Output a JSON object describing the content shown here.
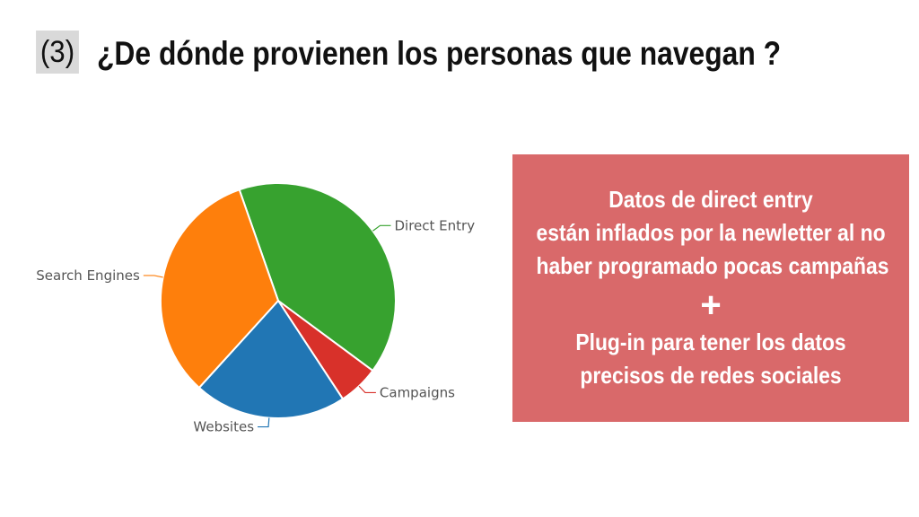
{
  "slide": {
    "number": "(3)",
    "title": "¿De dónde provienen los personas que navegan ?"
  },
  "note": {
    "line1": "Datos de direct entry",
    "line2": "están inflados por la newletter al no",
    "line3": "haber programado pocas campañas",
    "plus": "+",
    "line4": "Plug-in para tener los datos",
    "line5": "precisos de redes sociales",
    "background_color": "#d9696a"
  },
  "chart_data": {
    "type": "pie",
    "title": "",
    "slices": [
      {
        "label": "Direct Entry",
        "value": 40.5,
        "color": "#37a22f"
      },
      {
        "label": "Campaigns",
        "value": 5.6,
        "color": "#d8312a"
      },
      {
        "label": "Websites",
        "value": 21.0,
        "color": "#2176b4"
      },
      {
        "label": "Search Engines",
        "value": 32.9,
        "color": "#fe7f0c"
      }
    ],
    "start_angle_deg": -19.3,
    "direction": "clockwise",
    "legend": "none"
  }
}
